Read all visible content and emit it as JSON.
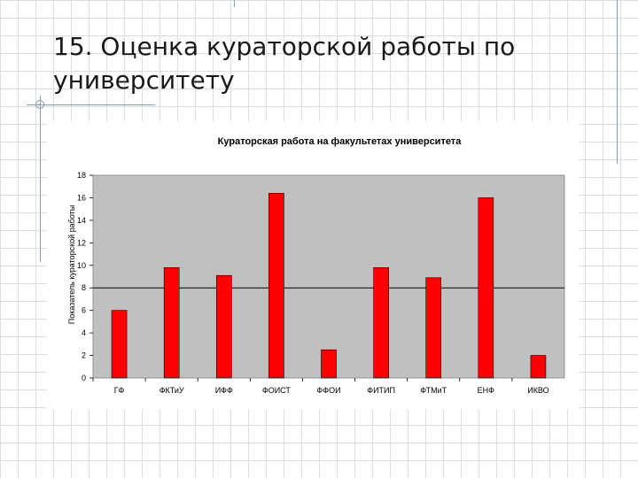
{
  "slide": {
    "title": "15. Оценка кураторской работы по университету"
  },
  "colors": {
    "bar": "#ff0000",
    "plot_background": "#c0c0c0",
    "reference_line": "#000000",
    "grid_line": "#ffffff"
  },
  "chart_data": {
    "type": "bar",
    "title": "Кураторская работа на факультетах университета",
    "xlabel": "",
    "ylabel": "Показатель кураторской работы",
    "categories": [
      "ГФ",
      "ФКТиУ",
      "ИФФ",
      "ФОИСТ",
      "ФФОИ",
      "ФИТИП",
      "ФТМиТ",
      "ЕНФ",
      "ИКВО"
    ],
    "values": [
      6,
      9.8,
      9.1,
      16.4,
      2.5,
      9.8,
      8.9,
      16,
      2
    ],
    "ylim": [
      0,
      18
    ],
    "yticks": [
      "0",
      "2",
      "4",
      "6",
      "8",
      "10",
      "12",
      "14",
      "16",
      "18"
    ],
    "reference_line_value": 8,
    "grid": false,
    "legend": "none"
  }
}
